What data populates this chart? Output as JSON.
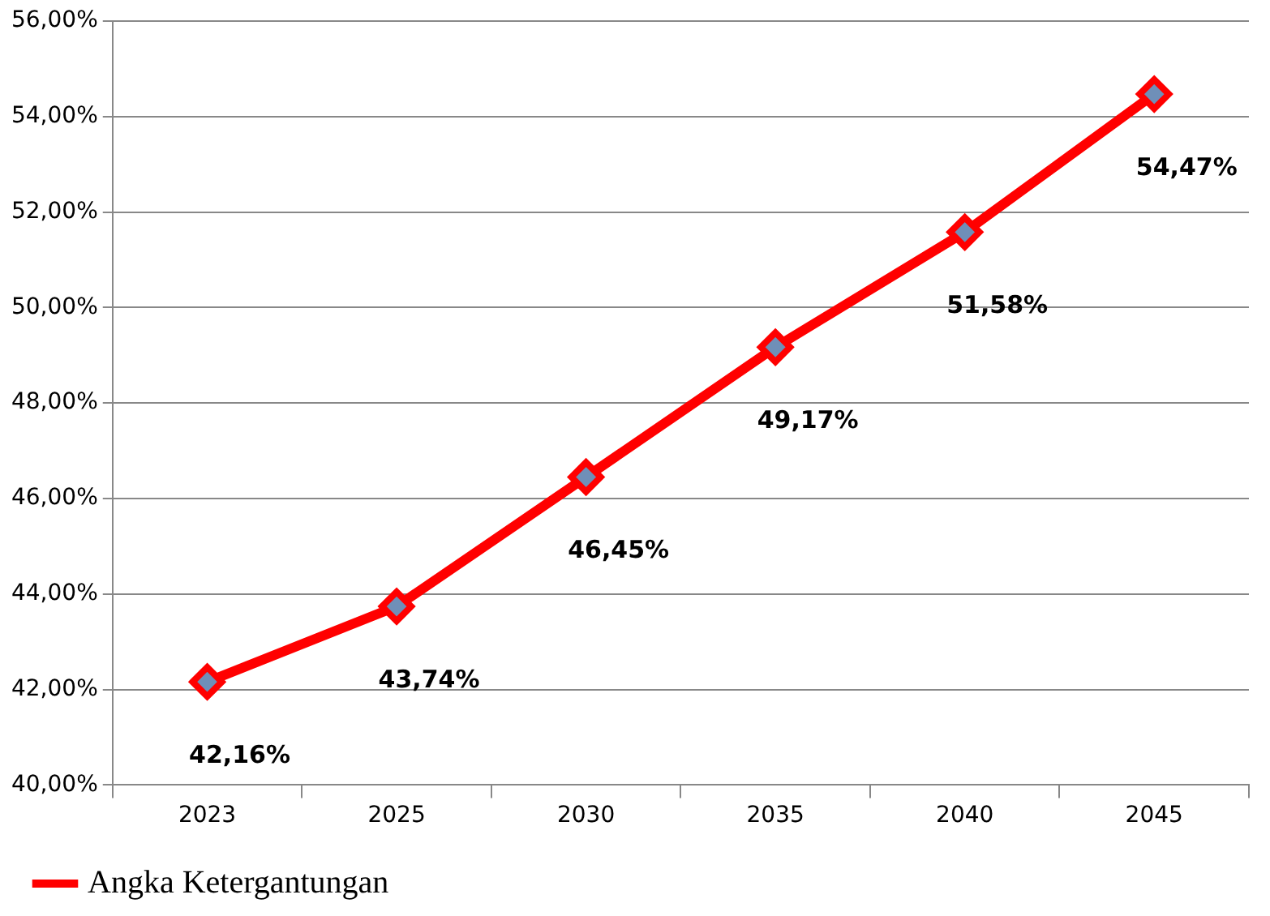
{
  "chart_data": {
    "type": "line",
    "categories": [
      "2023",
      "2025",
      "2030",
      "2035",
      "2040",
      "2045"
    ],
    "series": [
      {
        "name": "Angka Ketergantungan",
        "color": "#ff0000",
        "values": [
          42.16,
          43.74,
          46.45,
          49.17,
          51.58,
          54.47
        ],
        "value_labels": [
          "42,16%",
          "43,74%",
          "46,45%",
          "49,17%",
          "51,58%",
          "54,47%"
        ]
      }
    ],
    "ylim": [
      40,
      56
    ],
    "yticks": [
      {
        "value": 40,
        "label": "40,00%"
      },
      {
        "value": 42,
        "label": "42,00%"
      },
      {
        "value": 44,
        "label": "44,00%"
      },
      {
        "value": 46,
        "label": "46,00%"
      },
      {
        "value": 48,
        "label": "48,00%"
      },
      {
        "value": 50,
        "label": "50,00%"
      },
      {
        "value": 52,
        "label": "52,00%"
      },
      {
        "value": 54,
        "label": "54,00%"
      },
      {
        "value": 56,
        "label": "56,00%"
      }
    ],
    "grid": "y",
    "legend": "bottom left",
    "marker": "diamond",
    "line_style": "solid"
  }
}
